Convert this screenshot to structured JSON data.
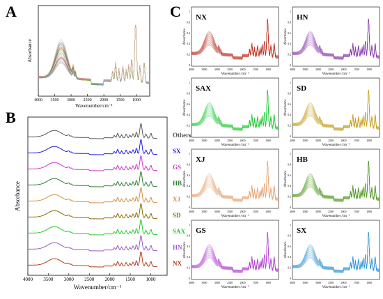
{
  "chart_data": [
    {
      "panel": "A",
      "type": "line",
      "xlabel": "Wavenumber/cm⁻¹",
      "ylabel": "Absorbance",
      "xlim": [
        4000,
        600
      ],
      "xticks": [
        4000,
        3500,
        3000,
        2500,
        2000,
        1500,
        1000
      ],
      "note": "many overlapping spectra, ~10 colours"
    },
    {
      "panel": "B",
      "type": "line",
      "xlabel": "Wavenumber/cm⁻¹",
      "ylabel": "Absorbance",
      "xlim": [
        4000,
        600
      ],
      "xticks": [
        4000,
        3500,
        3000,
        2500,
        2000,
        1500,
        1000
      ],
      "series": [
        {
          "name": "Others",
          "color": "#555555"
        },
        {
          "name": "SX",
          "color": "#1a1ae6"
        },
        {
          "name": "GS",
          "color": "#cc33cc"
        },
        {
          "name": "HB",
          "color": "#2e7d2e"
        },
        {
          "name": "XJ",
          "color": "#d98c3a"
        },
        {
          "name": "SD",
          "color": "#8b6b00"
        },
        {
          "name": "SAX",
          "color": "#22cc22"
        },
        {
          "name": "HN",
          "color": "#9955cc"
        },
        {
          "name": "NX",
          "color": "#b33a1a"
        }
      ]
    },
    {
      "panel": "C",
      "type": "line",
      "xlabel": "Wavenumber /cm⁻¹",
      "ylabel": "Absorbance",
      "xlim": [
        4000,
        600
      ],
      "xticks": [
        4000,
        3500,
        3000,
        2500,
        2000,
        1500,
        1000
      ],
      "yticks": [
        0,
        0.2,
        0.4,
        0.6,
        0.8,
        1
      ],
      "subplots": [
        {
          "name": "NX",
          "color": "#c0392b"
        },
        {
          "name": "HN",
          "color": "#8e44ad"
        },
        {
          "name": "SAX",
          "color": "#2ecc40"
        },
        {
          "name": "SD",
          "color": "#c9a227"
        },
        {
          "name": "XJ",
          "color": "#e8a87c"
        },
        {
          "name": "HB",
          "color": "#5a9e2f"
        },
        {
          "name": "GS",
          "color": "#b44bd6"
        },
        {
          "name": "SX",
          "color": "#3a9ad9"
        }
      ]
    }
  ],
  "panel_letters": {
    "a": "A",
    "b": "B",
    "c": "C"
  },
  "tick_labels": {
    "one": "1",
    "zero": "0",
    "p2": "0.2",
    "p4": "0.4",
    "p6": "0.6",
    "p8": "0.8"
  }
}
